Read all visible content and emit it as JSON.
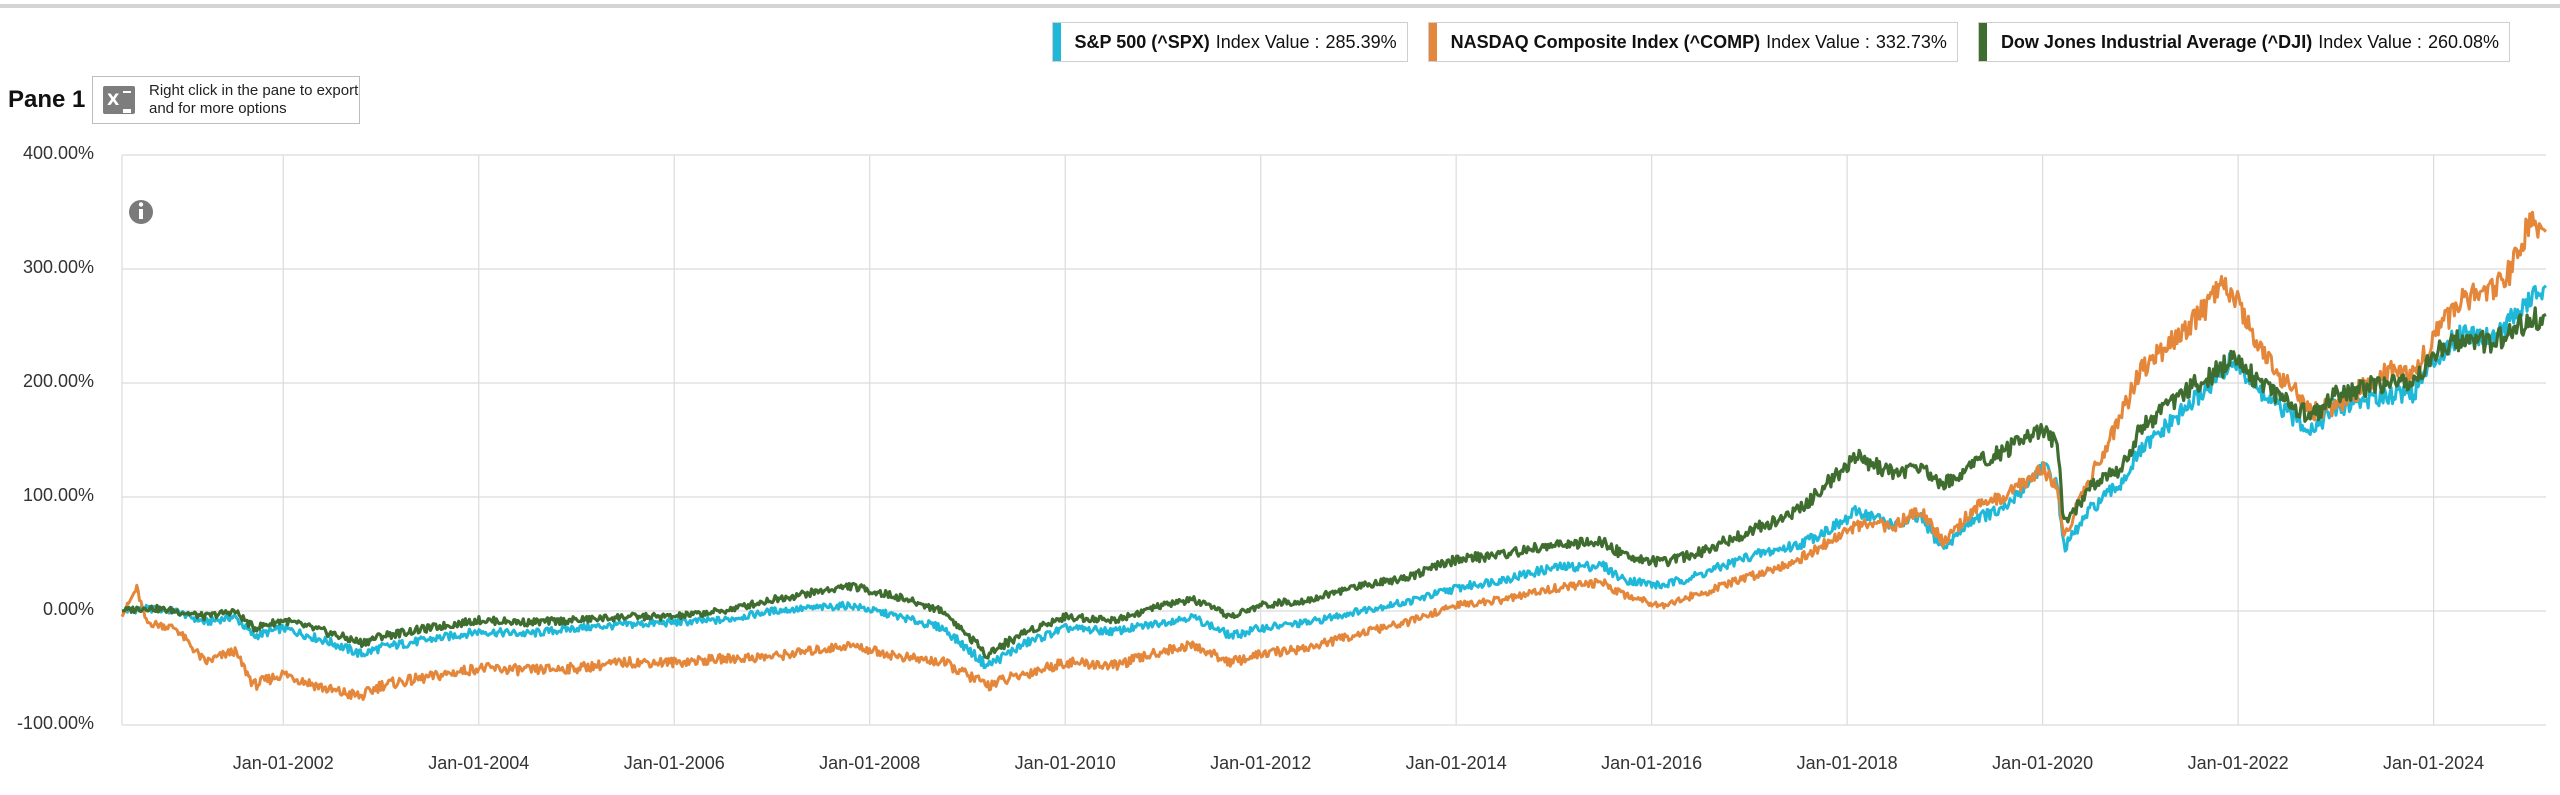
{
  "pane": {
    "title": "Pane 1",
    "export_hint": "Right click in the pane to export and for more options"
  },
  "legend": [
    {
      "name": "S&P 500 (^SPX)",
      "label": "Index Value :",
      "value": "285.39%",
      "color": "#1fb8d8"
    },
    {
      "name": "NASDAQ Composite Index (^COMP)",
      "label": "Index Value :",
      "value": "332.73%",
      "color": "#e5873a"
    },
    {
      "name": "Dow Jones Industrial Average (^DJI)",
      "label": "Index Value :",
      "value": "260.08%",
      "color": "#3f6d2f"
    }
  ],
  "chart_data": {
    "type": "line",
    "y_tick_labels": [
      "400.00%",
      "300.00%",
      "200.00%",
      "100.00%",
      "0.00%",
      "-100.00%"
    ],
    "y_ticks": [
      400,
      300,
      200,
      100,
      0,
      -100
    ],
    "ylim": [
      -100,
      400
    ],
    "x_tick_labels": [
      "Jan-01-2002",
      "Jan-01-2004",
      "Jan-01-2006",
      "Jan-01-2008",
      "Jan-01-2010",
      "Jan-01-2012",
      "Jan-01-2014",
      "Jan-01-2016",
      "Jan-01-2018",
      "Jan-01-2020",
      "Jan-01-2022",
      "Jan-01-2024"
    ],
    "x_ticks": [
      2002,
      2004,
      2006,
      2008,
      2010,
      2012,
      2014,
      2016,
      2018,
      2020,
      2022,
      2024
    ],
    "xlim": [
      2000.35,
      2025.15
    ],
    "grid": true,
    "series": [
      {
        "name": "S&P 500 (^SPX)",
        "color": "#1fb8d8",
        "x": [
          2000.35,
          2000.6,
          2000.9,
          2001.2,
          2001.5,
          2001.7,
          2002.0,
          2002.5,
          2002.8,
          2003.0,
          2003.5,
          2004.0,
          2004.5,
          2005.0,
          2005.5,
          2006.0,
          2006.5,
          2007.0,
          2007.8,
          2008.3,
          2008.75,
          2009.2,
          2009.6,
          2010.0,
          2010.5,
          2011.0,
          2011.3,
          2011.7,
          2012.0,
          2012.5,
          2013.0,
          2013.5,
          2014.0,
          2014.5,
          2015.0,
          2015.5,
          2015.7,
          2016.1,
          2016.5,
          2017.0,
          2017.5,
          2018.0,
          2018.1,
          2018.5,
          2018.75,
          2018.98,
          2019.3,
          2019.6,
          2020.0,
          2020.15,
          2020.22,
          2020.5,
          2020.8,
          2021.0,
          2021.5,
          2021.95,
          2022.3,
          2022.75,
          2023.0,
          2023.5,
          2023.8,
          2024.0,
          2024.3,
          2024.6,
          2024.9,
          2025.15
        ],
        "y": [
          0,
          2,
          0,
          -10,
          -5,
          -22,
          -15,
          -28,
          -38,
          -32,
          -25,
          -18,
          -20,
          -15,
          -12,
          -10,
          -8,
          0,
          5,
          -5,
          -15,
          -48,
          -28,
          -15,
          -18,
          -10,
          -5,
          -22,
          -15,
          -10,
          0,
          8,
          20,
          28,
          38,
          40,
          28,
          22,
          32,
          48,
          58,
          80,
          88,
          75,
          82,
          55,
          82,
          88,
          128,
          110,
          55,
          90,
          112,
          140,
          180,
          220,
          185,
          160,
          178,
          190,
          192,
          220,
          245,
          240,
          265,
          285.39
        ]
      },
      {
        "name": "NASDAQ Composite Index (^COMP)",
        "color": "#e5873a",
        "x": [
          2000.35,
          2000.5,
          2000.6,
          2000.9,
          2001.2,
          2001.5,
          2001.7,
          2002.0,
          2002.5,
          2002.8,
          2003.0,
          2003.5,
          2004.0,
          2004.5,
          2005.0,
          2005.5,
          2006.0,
          2006.5,
          2007.0,
          2007.8,
          2008.3,
          2008.75,
          2009.2,
          2009.6,
          2010.0,
          2010.5,
          2011.0,
          2011.3,
          2011.7,
          2012.0,
          2012.5,
          2013.0,
          2013.5,
          2014.0,
          2014.5,
          2015.0,
          2015.5,
          2015.7,
          2016.1,
          2016.5,
          2017.0,
          2017.5,
          2018.0,
          2018.1,
          2018.5,
          2018.75,
          2018.98,
          2019.3,
          2019.6,
          2020.0,
          2020.15,
          2020.22,
          2020.5,
          2020.8,
          2021.0,
          2021.5,
          2021.85,
          2022.0,
          2022.3,
          2022.75,
          2023.0,
          2023.5,
          2023.8,
          2024.0,
          2024.3,
          2024.6,
          2024.8,
          2025.0,
          2025.15
        ],
        "y": [
          -5,
          20,
          -10,
          -15,
          -45,
          -35,
          -65,
          -55,
          -70,
          -75,
          -65,
          -58,
          -50,
          -52,
          -50,
          -45,
          -45,
          -42,
          -40,
          -30,
          -40,
          -45,
          -65,
          -55,
          -45,
          -48,
          -35,
          -30,
          -45,
          -38,
          -32,
          -20,
          -10,
          5,
          10,
          20,
          25,
          15,
          5,
          15,
          30,
          45,
          70,
          75,
          75,
          90,
          60,
          90,
          100,
          125,
          110,
          65,
          120,
          170,
          210,
          250,
          285,
          270,
          220,
          175,
          180,
          210,
          210,
          240,
          275,
          280,
          300,
          345,
          332.73
        ]
      },
      {
        "name": "Dow Jones Industrial Average (^DJI)",
        "color": "#3f6d2f",
        "x": [
          2000.35,
          2000.6,
          2000.9,
          2001.2,
          2001.5,
          2001.7,
          2002.0,
          2002.5,
          2002.8,
          2003.0,
          2003.5,
          2004.0,
          2004.5,
          2005.0,
          2005.5,
          2006.0,
          2006.5,
          2007.0,
          2007.8,
          2008.3,
          2008.75,
          2009.2,
          2009.6,
          2010.0,
          2010.5,
          2011.0,
          2011.3,
          2011.7,
          2012.0,
          2012.5,
          2013.0,
          2013.5,
          2014.0,
          2014.5,
          2015.0,
          2015.5,
          2015.7,
          2016.1,
          2016.5,
          2017.0,
          2017.5,
          2018.0,
          2018.1,
          2018.5,
          2018.75,
          2018.98,
          2019.3,
          2019.6,
          2020.0,
          2020.15,
          2020.22,
          2020.5,
          2020.8,
          2021.0,
          2021.5,
          2021.95,
          2022.3,
          2022.75,
          2023.0,
          2023.5,
          2023.8,
          2024.0,
          2024.3,
          2024.6,
          2024.9,
          2025.15
        ],
        "y": [
          0,
          3,
          0,
          -5,
          0,
          -15,
          -8,
          -20,
          -28,
          -22,
          -15,
          -8,
          -10,
          -8,
          -5,
          -5,
          0,
          10,
          22,
          12,
          0,
          -38,
          -18,
          -5,
          -8,
          5,
          10,
          -5,
          5,
          10,
          22,
          30,
          45,
          50,
          58,
          60,
          50,
          42,
          52,
          70,
          88,
          128,
          135,
          120,
          128,
          110,
          130,
          140,
          160,
          145,
          75,
          110,
          125,
          160,
          195,
          220,
          195,
          170,
          190,
          200,
          200,
          225,
          240,
          235,
          250,
          260.08
        ]
      }
    ]
  }
}
